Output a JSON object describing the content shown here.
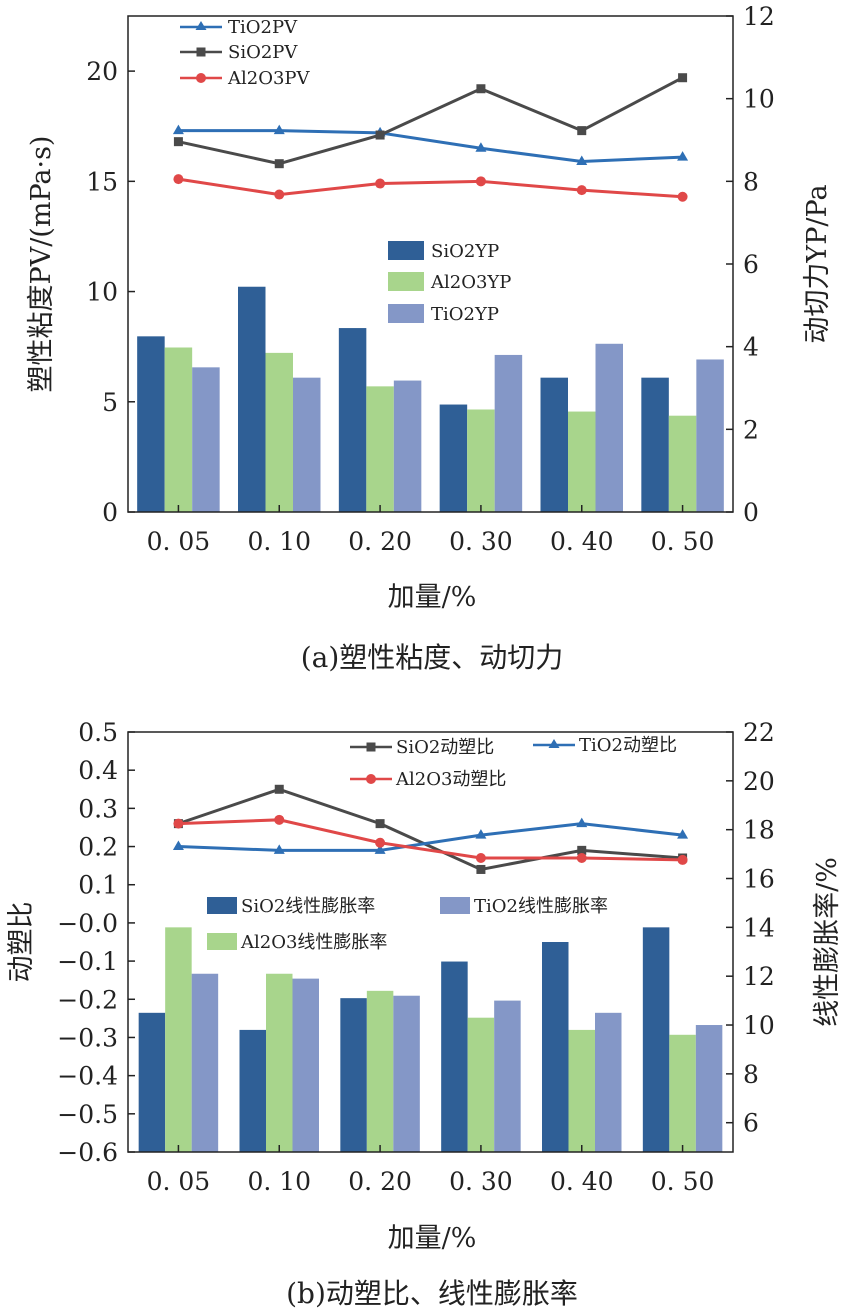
{
  "chart_data": [
    {
      "type": "bar+line",
      "caption": "(a)塑性粘度、动切力",
      "xlabel": "加量/%",
      "ylabel": "塑性粘度PV/(mPa·s)",
      "y2label": "动切力YP/Pa",
      "categories": [
        "0.05",
        "0.10",
        "0.20",
        "0.30",
        "0.40",
        "0.50"
      ],
      "ylim": [
        0,
        22.5
      ],
      "y_ticks": [
        "0",
        "5",
        "10",
        "15",
        "20"
      ],
      "y2lim": [
        0,
        12
      ],
      "y2_ticks": [
        "0",
        "2",
        "4",
        "6",
        "8",
        "10",
        "12"
      ],
      "bars_axis": "right",
      "bars": [
        {
          "name": "SiO2YP",
          "color": "#2f5f96",
          "values": [
            4.25,
            5.45,
            4.45,
            2.6,
            3.25,
            3.25
          ]
        },
        {
          "name": "Al2O3YP",
          "color": "#a8d58c",
          "values": [
            3.98,
            3.85,
            3.04,
            2.48,
            2.43,
            2.33
          ]
        },
        {
          "name": "TiO2YP",
          "color": "#8497c7",
          "values": [
            3.5,
            3.25,
            3.18,
            3.8,
            4.07,
            3.69
          ]
        }
      ],
      "lines_axis": "left",
      "lines": [
        {
          "name": "TiO2PV",
          "color": "#2e6fb5",
          "marker": "triangle",
          "values": [
            17.3,
            17.3,
            17.2,
            16.5,
            15.9,
            16.1
          ]
        },
        {
          "name": "SiO2PV",
          "color": "#4a4a4a",
          "marker": "square",
          "values": [
            16.8,
            15.8,
            17.1,
            19.2,
            17.3,
            19.7
          ]
        },
        {
          "name": "Al2O3PV",
          "color": "#e04848",
          "marker": "circle",
          "values": [
            15.1,
            14.4,
            14.9,
            15.0,
            14.6,
            14.3
          ]
        }
      ]
    },
    {
      "type": "bar+line",
      "caption": "(b)动塑比、线性膨胀率",
      "xlabel": "加量/%",
      "ylabel": "动塑比",
      "y2label": "线性膨胀率/%",
      "categories": [
        "0.05",
        "0.10",
        "0.20",
        "0.30",
        "0.40",
        "0.50"
      ],
      "ylim": [
        -0.6,
        0.5
      ],
      "y_ticks": [
        "−0.6",
        "−0.5",
        "−0.4",
        "−0.3",
        "−0.2",
        "−0.1",
        "−0.0",
        "0.1",
        "0.2",
        "0.3",
        "0.4",
        "0.5"
      ],
      "y2lim": [
        4.8,
        22
      ],
      "y2_ticks": [
        "6",
        "8",
        "10",
        "12",
        "14",
        "16",
        "18",
        "20",
        "22"
      ],
      "bars_axis": "right",
      "bars": [
        {
          "name": "SiO2线性膨胀率",
          "color": "#2f5f96",
          "values": [
            10.5,
            9.8,
            11.1,
            12.6,
            13.4,
            14.0
          ]
        },
        {
          "name": "Al2O3线性膨胀率",
          "color": "#a8d58c",
          "values": [
            14.0,
            12.1,
            11.4,
            10.3,
            9.8,
            9.6
          ]
        },
        {
          "name": "TiO2线性膨胀率",
          "color": "#8497c7",
          "values": [
            12.1,
            11.9,
            11.2,
            11.0,
            10.5,
            10.0
          ]
        }
      ],
      "lines_axis": "left",
      "lines": [
        {
          "name": "SiO2动塑比",
          "color": "#4a4a4a",
          "marker": "square",
          "values": [
            0.26,
            0.35,
            0.26,
            0.14,
            0.19,
            0.17
          ]
        },
        {
          "name": "TiO2动塑比",
          "color": "#2e6fb5",
          "marker": "triangle",
          "values": [
            0.2,
            0.19,
            0.19,
            0.23,
            0.26,
            0.23
          ]
        },
        {
          "name": "Al2O3动塑比",
          "color": "#e04848",
          "marker": "circle",
          "values": [
            0.26,
            0.27,
            0.21,
            0.17,
            0.17,
            0.165
          ]
        }
      ]
    }
  ]
}
